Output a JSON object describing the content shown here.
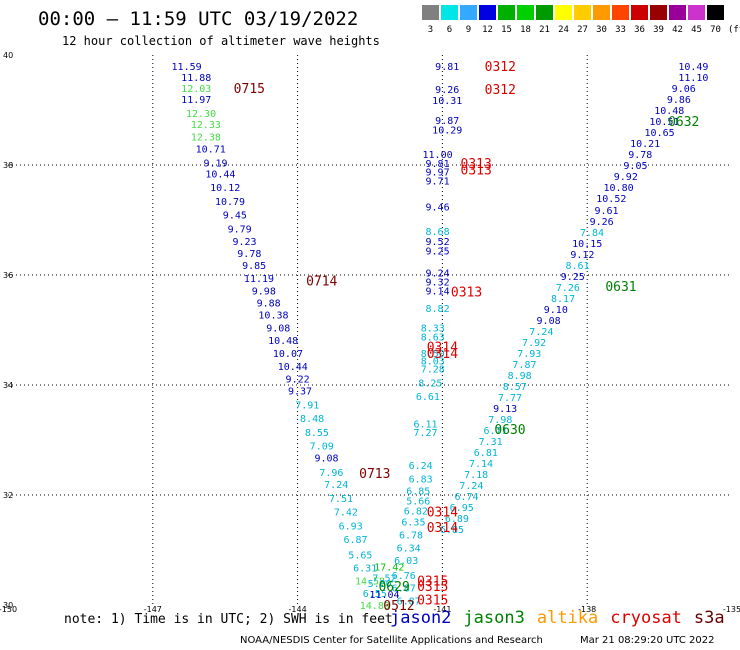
{
  "header": {
    "title": "00:00 – 11:59 UTC 03/19/2022",
    "subtitle": "12 hour collection of altimeter wave heights"
  },
  "color_scale": {
    "unit": "(ft)",
    "bins": [
      {
        "label": "3",
        "color": "#808080"
      },
      {
        "label": "6",
        "color": "#00e5e5"
      },
      {
        "label": "9",
        "color": "#33aaff"
      },
      {
        "label": "12",
        "color": "#0000e0"
      },
      {
        "label": "15",
        "color": "#00b000"
      },
      {
        "label": "18",
        "color": "#00d000"
      },
      {
        "label": "21",
        "color": "#009900"
      },
      {
        "label": "24",
        "color": "#ffff00"
      },
      {
        "label": "27",
        "color": "#ffcc00"
      },
      {
        "label": "30",
        "color": "#ff9900"
      },
      {
        "label": "33",
        "color": "#ff4400"
      },
      {
        "label": "36",
        "color": "#cc0000"
      },
      {
        "label": "39",
        "color": "#990000"
      },
      {
        "label": "42",
        "color": "#990099"
      },
      {
        "label": "45",
        "color": "#cc33cc"
      },
      {
        "label": "70",
        "color": "#000000"
      }
    ]
  },
  "axes": {
    "lon_ticks": [
      "-150",
      "-147",
      "-144",
      "-141",
      "-138",
      "-135"
    ],
    "lat_ticks": [
      "30",
      "32",
      "34",
      "36",
      "38",
      "40"
    ],
    "lon_range": [
      -150,
      -135
    ],
    "lat_range": [
      30,
      40
    ]
  },
  "colors": {
    "jason2": "#0000c0",
    "jason3": "#008000",
    "altika": "#ff9900",
    "cryosat": "#dd0000",
    "s3a": "#660000",
    "cyan": "#00b5d5",
    "green": "#00c000",
    "lime": "#44dd44",
    "lightgreen": "#66dd66",
    "darkred": "#800000"
  },
  "tracks": [
    {
      "satellite": "s3a",
      "points": [
        {
          "lon": -146.3,
          "lat": 39.8,
          "swh": "11.59",
          "c": "jason2"
        },
        {
          "lon": -146.1,
          "lat": 39.6,
          "swh": "11.88",
          "c": "jason2"
        },
        {
          "lon": -146.1,
          "lat": 39.4,
          "swh": "12.03",
          "c": "lime"
        },
        {
          "lon": -146.1,
          "lat": 39.2,
          "swh": "11.97",
          "c": "jason2"
        },
        {
          "lon": -146.0,
          "lat": 38.95,
          "swh": "12.30",
          "c": "lime"
        },
        {
          "lon": -145.9,
          "lat": 38.75,
          "swh": "12.33",
          "c": "lime"
        },
        {
          "lon": -145.9,
          "lat": 38.52,
          "swh": "12.38",
          "c": "lime"
        },
        {
          "lon": -145.8,
          "lat": 38.3,
          "swh": "10.71",
          "c": "jason2"
        },
        {
          "lon": -145.7,
          "lat": 38.05,
          "swh": "9.19",
          "c": "jason2"
        },
        {
          "lon": -145.6,
          "lat": 37.85,
          "swh": "10.44",
          "c": "jason2"
        },
        {
          "lon": -145.5,
          "lat": 37.6,
          "swh": "10.12",
          "c": "jason2"
        },
        {
          "lon": -145.4,
          "lat": 37.35,
          "swh": "10.79",
          "c": "jason2"
        },
        {
          "lon": -145.3,
          "lat": 37.1,
          "swh": "9.45",
          "c": "jason2"
        },
        {
          "lon": -145.2,
          "lat": 36.85,
          "swh": "9.79",
          "c": "jason2"
        },
        {
          "lon": -145.1,
          "lat": 36.62,
          "swh": "9.23",
          "c": "jason2"
        },
        {
          "lon": -145.0,
          "lat": 36.4,
          "swh": "9.78",
          "c": "jason2"
        },
        {
          "lon": -144.9,
          "lat": 36.18,
          "swh": "9.85",
          "c": "jason2"
        },
        {
          "lon": -144.8,
          "lat": 35.95,
          "swh": "11.19",
          "c": "jason2"
        },
        {
          "lon": -144.7,
          "lat": 35.72,
          "swh": "9.98",
          "c": "jason2"
        },
        {
          "lon": -144.6,
          "lat": 35.5,
          "swh": "9.88",
          "c": "jason2"
        },
        {
          "lon": -144.5,
          "lat": 35.28,
          "swh": "10.38",
          "c": "jason2"
        },
        {
          "lon": -144.4,
          "lat": 35.05,
          "swh": "9.08",
          "c": "jason2"
        },
        {
          "lon": -144.3,
          "lat": 34.82,
          "swh": "10.48",
          "c": "jason2"
        },
        {
          "lon": -144.2,
          "lat": 34.58,
          "swh": "10.07",
          "c": "jason2"
        },
        {
          "lon": -144.1,
          "lat": 34.35,
          "swh": "10.44",
          "c": "jason2"
        },
        {
          "lon": -144.0,
          "lat": 34.12,
          "swh": "9.22",
          "c": "jason2"
        },
        {
          "lon": -143.95,
          "lat": 33.9,
          "swh": "9.37",
          "c": "jason2"
        },
        {
          "lon": -143.8,
          "lat": 33.65,
          "swh": "7.91",
          "c": "cyan"
        },
        {
          "lon": -143.7,
          "lat": 33.4,
          "swh": "8.48",
          "c": "cyan"
        },
        {
          "lon": -143.6,
          "lat": 33.15,
          "swh": "8.55",
          "c": "cyan"
        },
        {
          "lon": -143.5,
          "lat": 32.9,
          "swh": "7.09",
          "c": "cyan"
        },
        {
          "lon": -143.4,
          "lat": 32.68,
          "swh": "9.08",
          "c": "jason2"
        },
        {
          "lon": -143.3,
          "lat": 32.42,
          "swh": "7.96",
          "c": "cyan"
        },
        {
          "lon": -143.2,
          "lat": 32.2,
          "swh": "7.24",
          "c": "cyan"
        },
        {
          "lon": -143.1,
          "lat": 31.95,
          "swh": "7.51",
          "c": "cyan"
        },
        {
          "lon": -143.0,
          "lat": 31.7,
          "swh": "7.42",
          "c": "cyan"
        },
        {
          "lon": -142.9,
          "lat": 31.45,
          "swh": "6.93",
          "c": "cyan"
        },
        {
          "lon": -142.8,
          "lat": 31.2,
          "swh": "6.87",
          "c": "cyan"
        },
        {
          "lon": -142.7,
          "lat": 30.92,
          "swh": "5.65",
          "c": "cyan"
        },
        {
          "lon": -142.6,
          "lat": 30.68,
          "swh": "6.31",
          "c": "cyan"
        },
        {
          "lon": -142.5,
          "lat": 30.45,
          "swh": "14.58",
          "c": "lime"
        },
        {
          "lon": -142.4,
          "lat": 30.22,
          "swh": "6.55",
          "c": "cyan"
        },
        {
          "lon": -142.4,
          "lat": 30.0,
          "swh": "14.89",
          "c": "lime"
        }
      ]
    },
    {
      "satellite": "cryosat",
      "points": [
        {
          "lon": -140.9,
          "lat": 39.8,
          "swh": "9.81",
          "c": "jason2"
        },
        {
          "lon": -140.9,
          "lat": 39.38,
          "swh": "9.26",
          "c": "jason2"
        },
        {
          "lon": -140.9,
          "lat": 39.18,
          "swh": "10.31",
          "c": "jason2"
        },
        {
          "lon": -140.9,
          "lat": 38.82,
          "swh": "9.87",
          "c": "jason2"
        },
        {
          "lon": -140.9,
          "lat": 38.65,
          "swh": "10.29",
          "c": "jason2"
        },
        {
          "lon": -141.1,
          "lat": 38.2,
          "swh": "11.00",
          "c": "jason2"
        },
        {
          "lon": -141.1,
          "lat": 38.04,
          "swh": "9.81",
          "c": "jason2"
        },
        {
          "lon": -141.1,
          "lat": 37.88,
          "swh": "9.97",
          "c": "jason2"
        },
        {
          "lon": -141.1,
          "lat": 37.72,
          "swh": "9.71",
          "c": "jason2"
        },
        {
          "lon": -141.1,
          "lat": 37.25,
          "swh": "9.46",
          "c": "jason2"
        },
        {
          "lon": -141.1,
          "lat": 36.8,
          "swh": "8.68",
          "c": "cyan"
        },
        {
          "lon": -141.1,
          "lat": 36.62,
          "swh": "9.52",
          "c": "jason2"
        },
        {
          "lon": -141.1,
          "lat": 36.45,
          "swh": "9.25",
          "c": "jason2"
        },
        {
          "lon": -141.1,
          "lat": 36.05,
          "swh": "9.24",
          "c": "jason2"
        },
        {
          "lon": -141.1,
          "lat": 35.88,
          "swh": "9.32",
          "c": "jason2"
        },
        {
          "lon": -141.1,
          "lat": 35.72,
          "swh": "9.14",
          "c": "jason2"
        },
        {
          "lon": -141.1,
          "lat": 35.4,
          "swh": "8.82",
          "c": "cyan"
        },
        {
          "lon": -141.2,
          "lat": 35.05,
          "swh": "8.33",
          "c": "cyan"
        },
        {
          "lon": -141.2,
          "lat": 34.88,
          "swh": "8.63",
          "c": "cyan"
        },
        {
          "lon": -141.2,
          "lat": 34.58,
          "swh": "8.50",
          "c": "cyan"
        },
        {
          "lon": -141.2,
          "lat": 34.45,
          "swh": "8.03",
          "c": "cyan"
        },
        {
          "lon": -141.2,
          "lat": 34.3,
          "swh": "7.28",
          "c": "cyan"
        },
        {
          "lon": -141.25,
          "lat": 34.05,
          "swh": "8.25",
          "c": "cyan"
        },
        {
          "lon": -141.3,
          "lat": 33.8,
          "swh": "6.61",
          "c": "cyan"
        },
        {
          "lon": -141.35,
          "lat": 33.3,
          "swh": "6.11",
          "c": "cyan"
        },
        {
          "lon": -141.35,
          "lat": 33.15,
          "swh": "7.27",
          "c": "cyan"
        },
        {
          "lon": -141.45,
          "lat": 32.55,
          "swh": "6.24",
          "c": "cyan"
        },
        {
          "lon": -141.45,
          "lat": 32.3,
          "swh": "6.83",
          "c": "cyan"
        },
        {
          "lon": -141.5,
          "lat": 32.08,
          "swh": "6.85",
          "c": "cyan"
        },
        {
          "lon": -141.5,
          "lat": 31.9,
          "swh": "5.66",
          "c": "cyan"
        },
        {
          "lon": -141.55,
          "lat": 31.72,
          "swh": "6.82",
          "c": "cyan"
        },
        {
          "lon": -141.6,
          "lat": 31.52,
          "swh": "6.35",
          "c": "cyan"
        },
        {
          "lon": -141.65,
          "lat": 31.28,
          "swh": "6.78",
          "c": "cyan"
        },
        {
          "lon": -141.7,
          "lat": 31.05,
          "swh": "6.34",
          "c": "cyan"
        },
        {
          "lon": -141.75,
          "lat": 30.82,
          "swh": "6.03",
          "c": "cyan"
        },
        {
          "lon": -141.8,
          "lat": 30.55,
          "swh": "6.76",
          "c": "cyan"
        },
        {
          "lon": -141.8,
          "lat": 30.32,
          "swh": "6.87",
          "c": "cyan"
        }
      ]
    },
    {
      "satellite": "jason3",
      "points": [
        {
          "lon": -135.8,
          "lat": 39.8,
          "swh": "10.49",
          "c": "jason2"
        },
        {
          "lon": -135.8,
          "lat": 39.6,
          "swh": "11.10",
          "c": "jason2"
        },
        {
          "lon": -136.0,
          "lat": 39.4,
          "swh": "9.06",
          "c": "jason2"
        },
        {
          "lon": -136.1,
          "lat": 39.2,
          "swh": "9.86",
          "c": "jason2"
        },
        {
          "lon": -136.3,
          "lat": 39.0,
          "swh": "10.48",
          "c": "jason2"
        },
        {
          "lon": -136.4,
          "lat": 38.8,
          "swh": "10.51",
          "c": "jason2"
        },
        {
          "lon": -136.5,
          "lat": 38.6,
          "swh": "10.65",
          "c": "jason2"
        },
        {
          "lon": -136.8,
          "lat": 38.4,
          "swh": "10.21",
          "c": "jason2"
        },
        {
          "lon": -136.9,
          "lat": 38.2,
          "swh": "9.78",
          "c": "jason2"
        },
        {
          "lon": -137.0,
          "lat": 38.0,
          "swh": "9.05",
          "c": "jason2"
        },
        {
          "lon": -137.2,
          "lat": 37.8,
          "swh": "9.92",
          "c": "jason2"
        },
        {
          "lon": -137.35,
          "lat": 37.6,
          "swh": "10.80",
          "c": "jason2"
        },
        {
          "lon": -137.5,
          "lat": 37.4,
          "swh": "10.52",
          "c": "jason2"
        },
        {
          "lon": -137.6,
          "lat": 37.18,
          "swh": "9.61",
          "c": "jason2"
        },
        {
          "lon": -137.7,
          "lat": 36.98,
          "swh": "9.26",
          "c": "jason2"
        },
        {
          "lon": -137.9,
          "lat": 36.78,
          "swh": "7.84",
          "c": "cyan"
        },
        {
          "lon": -138.0,
          "lat": 36.58,
          "swh": "10.15",
          "c": "jason2"
        },
        {
          "lon": -138.1,
          "lat": 36.38,
          "swh": "9.12",
          "c": "jason2"
        },
        {
          "lon": -138.2,
          "lat": 36.18,
          "swh": "8.61",
          "c": "cyan"
        },
        {
          "lon": -138.3,
          "lat": 35.98,
          "swh": "9.25",
          "c": "jason2"
        },
        {
          "lon": -138.4,
          "lat": 35.78,
          "swh": "7.26",
          "c": "cyan"
        },
        {
          "lon": -138.5,
          "lat": 35.58,
          "swh": "8.17",
          "c": "cyan"
        },
        {
          "lon": -138.65,
          "lat": 35.38,
          "swh": "9.10",
          "c": "jason2"
        },
        {
          "lon": -138.8,
          "lat": 35.18,
          "swh": "9.08",
          "c": "jason2"
        },
        {
          "lon": -138.95,
          "lat": 34.98,
          "swh": "7.24",
          "c": "cyan"
        },
        {
          "lon": -139.1,
          "lat": 34.78,
          "swh": "7.92",
          "c": "cyan"
        },
        {
          "lon": -139.2,
          "lat": 34.58,
          "swh": "7.93",
          "c": "cyan"
        },
        {
          "lon": -139.3,
          "lat": 34.38,
          "swh": "7.87",
          "c": "cyan"
        },
        {
          "lon": -139.4,
          "lat": 34.18,
          "swh": "8.98",
          "c": "cyan"
        },
        {
          "lon": -139.5,
          "lat": 33.98,
          "swh": "8.57",
          "c": "cyan"
        },
        {
          "lon": -139.6,
          "lat": 33.78,
          "swh": "7.77",
          "c": "cyan"
        },
        {
          "lon": -139.7,
          "lat": 33.58,
          "swh": "9.13",
          "c": "jason2"
        },
        {
          "lon": -139.8,
          "lat": 33.38,
          "swh": "7.98",
          "c": "cyan"
        },
        {
          "lon": -139.9,
          "lat": 33.18,
          "swh": "6.71",
          "c": "cyan"
        },
        {
          "lon": -140.0,
          "lat": 32.98,
          "swh": "7.31",
          "c": "cyan"
        },
        {
          "lon": -140.1,
          "lat": 32.78,
          "swh": "6.81",
          "c": "cyan"
        },
        {
          "lon": -140.2,
          "lat": 32.58,
          "swh": "7.14",
          "c": "cyan"
        },
        {
          "lon": -140.3,
          "lat": 32.38,
          "swh": "7.18",
          "c": "cyan"
        },
        {
          "lon": -140.4,
          "lat": 32.18,
          "swh": "7.24",
          "c": "cyan"
        },
        {
          "lon": -140.5,
          "lat": 31.98,
          "swh": "6.74",
          "c": "cyan"
        },
        {
          "lon": -140.6,
          "lat": 31.78,
          "swh": "6.95",
          "c": "cyan"
        },
        {
          "lon": -140.7,
          "lat": 31.58,
          "swh": "6.89",
          "c": "cyan"
        },
        {
          "lon": -140.8,
          "lat": 31.38,
          "swh": "6.85",
          "c": "cyan"
        }
      ]
    },
    {
      "satellite": "cryosat-extra",
      "points": [
        {
          "lon": -142.1,
          "lat": 30.7,
          "swh": "17.42",
          "c": "green"
        },
        {
          "lon": -142.2,
          "lat": 30.5,
          "swh": "7.52",
          "c": "cyan"
        },
        {
          "lon": -142.3,
          "lat": 30.4,
          "swh": "5.80",
          "c": "cyan"
        },
        {
          "lon": -142.2,
          "lat": 30.2,
          "swh": "11.04",
          "c": "jason2"
        },
        {
          "lon": -141.7,
          "lat": 30.08,
          "swh": "6.87",
          "c": "cyan"
        }
      ]
    }
  ],
  "pass_times": [
    {
      "label": "0715",
      "lon": -145.0,
      "lat": 39.4,
      "c": "darkred"
    },
    {
      "label": "0714",
      "lon": -143.5,
      "lat": 35.9,
      "c": "darkred"
    },
    {
      "label": "0713",
      "lon": -142.4,
      "lat": 32.4,
      "c": "darkred"
    },
    {
      "label": "0512",
      "lon": -141.9,
      "lat": 30.0,
      "c": "darkred"
    },
    {
      "label": "0312",
      "lon": -139.8,
      "lat": 39.8,
      "c": "cryosat"
    },
    {
      "label": "0312",
      "lon": -139.8,
      "lat": 39.38,
      "c": "cryosat"
    },
    {
      "label": "0313",
      "lon": -140.3,
      "lat": 38.04,
      "c": "cryosat"
    },
    {
      "label": "0313",
      "lon": -140.3,
      "lat": 37.92,
      "c": "cryosat"
    },
    {
      "label": "0313",
      "lon": -140.5,
      "lat": 35.7,
      "c": "cryosat"
    },
    {
      "label": "0314",
      "lon": -141.0,
      "lat": 34.7,
      "c": "cryosat"
    },
    {
      "label": "0314",
      "lon": -141.0,
      "lat": 34.58,
      "c": "cryosat"
    },
    {
      "label": "0314",
      "lon": -141.0,
      "lat": 31.7,
      "c": "cryosat"
    },
    {
      "label": "0314",
      "lon": -141.0,
      "lat": 31.42,
      "c": "cryosat"
    },
    {
      "label": "0315",
      "lon": -141.2,
      "lat": 30.45,
      "c": "cryosat"
    },
    {
      "label": "0315",
      "lon": -141.2,
      "lat": 30.35,
      "c": "cryosat"
    },
    {
      "label": "0315",
      "lon": -141.2,
      "lat": 30.1,
      "c": "cryosat"
    },
    {
      "label": "0632",
      "lon": -136.0,
      "lat": 38.8,
      "c": "jason3"
    },
    {
      "label": "0631",
      "lon": -137.3,
      "lat": 35.8,
      "c": "jason3"
    },
    {
      "label": "0630",
      "lon": -139.6,
      "lat": 33.2,
      "c": "jason3"
    },
    {
      "label": "0629",
      "lon": -142.0,
      "lat": 30.35,
      "c": "jason3"
    }
  ],
  "footer": {
    "note": "note: 1) Time is in UTC; 2) SWH is in feet",
    "legend": [
      {
        "name": "jason2",
        "c": "jason2"
      },
      {
        "name": "jason3",
        "c": "jason3"
      },
      {
        "name": "altika",
        "c": "altika"
      },
      {
        "name": "cryosat",
        "c": "cryosat"
      },
      {
        "name": "s3a",
        "c": "s3a"
      }
    ],
    "credit": "NOAA/NESDIS Center for Satellite Applications and Research",
    "timestamp": "Mar 21 08:29:20 UTC 2022"
  }
}
